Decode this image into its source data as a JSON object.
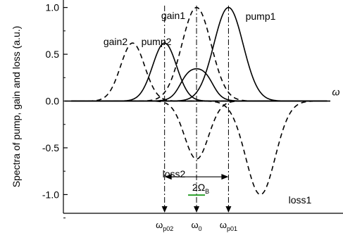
{
  "chart_data": {
    "type": "line",
    "title": "",
    "xlabel": "ω",
    "ylabel": "Spectra of pump, gain and loss (a.u.)",
    "ylim": [
      -1.2,
      1.08
    ],
    "xlim": [
      -5,
      5.5
    ],
    "grid": false,
    "yticks": [
      1.0,
      0.5,
      0.0,
      -0.5,
      -1.0
    ],
    "ytick_labels": [
      "1.0",
      "0.5",
      "0.0",
      "-0.5",
      "-1.0"
    ],
    "series": [
      {
        "name": "pump1",
        "style": "solid",
        "center": 1.2,
        "amplitude": 1.0,
        "width": 0.55
      },
      {
        "name": "pump2",
        "style": "solid",
        "center": -1.2,
        "amplitude": 0.62,
        "width": 0.45
      },
      {
        "name": "",
        "style": "solid",
        "kind": "overlap",
        "center": 0.0,
        "amplitude": 0.37
      },
      {
        "name": "gain1",
        "style": "dashed",
        "center": 0.0,
        "amplitude": 1.0,
        "width": 0.55
      },
      {
        "name": "gain2",
        "style": "dashed",
        "center": -2.4,
        "amplitude": 0.62,
        "width": 0.45
      },
      {
        "name": "loss1",
        "style": "dashed",
        "center": 2.4,
        "amplitude": -1.0,
        "width": 0.55
      },
      {
        "name": "loss2",
        "style": "dashed",
        "center": 0.0,
        "amplitude": -0.62,
        "width": 0.45
      }
    ],
    "x_markers": [
      {
        "label_main": "ω",
        "label_sub": "p02",
        "x": -1.2
      },
      {
        "label_main": "ω",
        "label_sub": "0",
        "x": 0.0
      },
      {
        "label_main": "ω",
        "label_sub": "p01",
        "x": 1.2
      }
    ],
    "span_annotation": {
      "label_main": "2Ω",
      "label_sub": "B",
      "from": -1.2,
      "to": 1.2,
      "y": -0.81
    }
  }
}
